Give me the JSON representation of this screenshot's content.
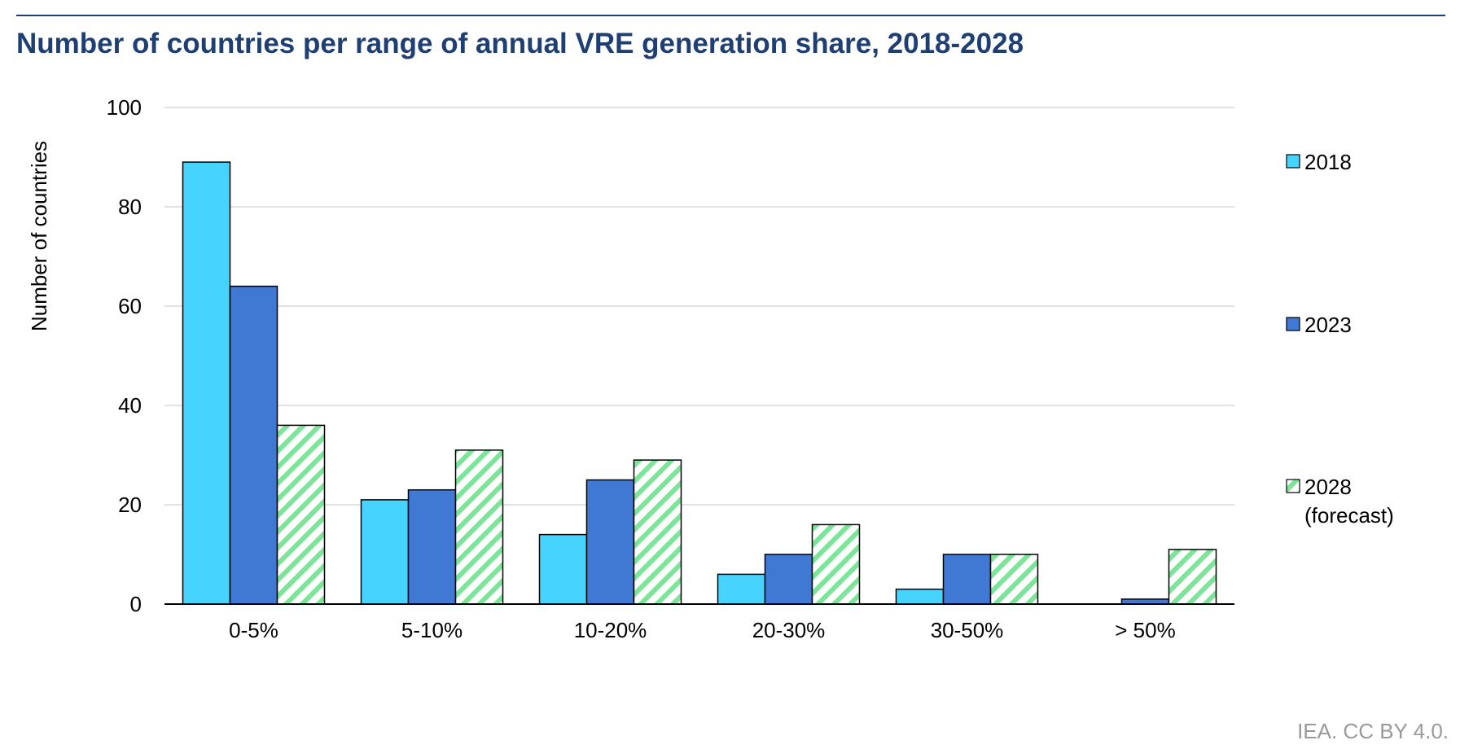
{
  "title": "Number of countries per range of annual VRE generation share, 2018-2028",
  "footer": "IEA. CC BY 4.0.",
  "chart_data": {
    "type": "bar",
    "ylabel": "Number of countries",
    "xlabel": "",
    "ylim": [
      0,
      100
    ],
    "yticks": [
      0,
      20,
      40,
      60,
      80,
      100
    ],
    "grid": true,
    "legend_position": "right",
    "categories": [
      "0-5%",
      "5-10%",
      "10-20%",
      "20-30%",
      "30-50%",
      "> 50%"
    ],
    "series": [
      {
        "name": "2018",
        "values": [
          89,
          21,
          14,
          6,
          3,
          0
        ],
        "color": "#46d3fd",
        "pattern": "solid"
      },
      {
        "name": "2023",
        "values": [
          64,
          23,
          25,
          10,
          10,
          1
        ],
        "color": "#3f79d3",
        "pattern": "solid"
      },
      {
        "name": "2028 (forecast)",
        "legend_lines": [
          "2028",
          "(forecast)"
        ],
        "values": [
          36,
          31,
          29,
          16,
          10,
          11
        ],
        "color": "#7de59a",
        "pattern": "hatched"
      }
    ]
  }
}
